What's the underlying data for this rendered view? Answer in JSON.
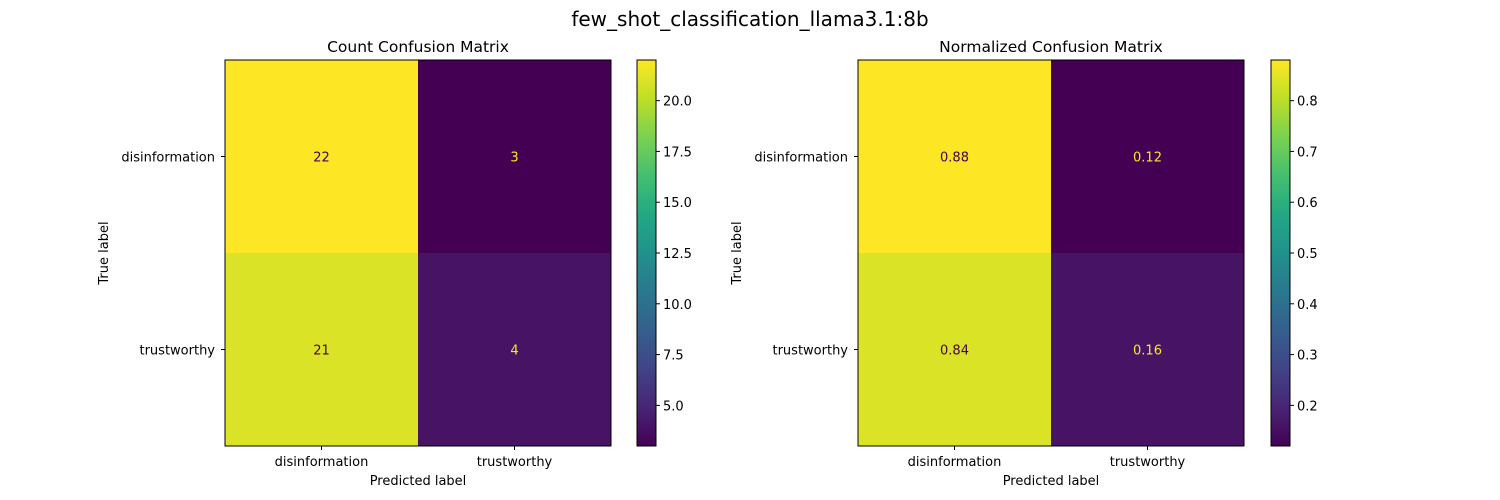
{
  "figure_title": "few_shot_classification_llama3.1:8b",
  "chart_data": [
    {
      "type": "heatmap",
      "title": "Count Confusion Matrix",
      "xlabel": "Predicted label",
      "ylabel": "True label",
      "x_categories": [
        "disinformation",
        "trustworthy"
      ],
      "y_categories": [
        "disinformation",
        "trustworthy"
      ],
      "values": [
        [
          22,
          3
        ],
        [
          21,
          4
        ]
      ],
      "value_labels": [
        [
          "22",
          "3"
        ],
        [
          "21",
          "4"
        ]
      ],
      "colormap": "viridis",
      "color_range": [
        3,
        22
      ],
      "colorbar_ticks": [
        5.0,
        7.5,
        10.0,
        12.5,
        15.0,
        17.5,
        20.0
      ],
      "colorbar_tick_labels": [
        "5.0",
        "7.5",
        "10.0",
        "12.5",
        "15.0",
        "17.5",
        "20.0"
      ]
    },
    {
      "type": "heatmap",
      "title": "Normalized Confusion Matrix",
      "xlabel": "Predicted label",
      "ylabel": "True label",
      "x_categories": [
        "disinformation",
        "trustworthy"
      ],
      "y_categories": [
        "disinformation",
        "trustworthy"
      ],
      "values": [
        [
          0.88,
          0.12
        ],
        [
          0.84,
          0.16
        ]
      ],
      "value_labels": [
        [
          "0.88",
          "0.12"
        ],
        [
          "0.84",
          "0.16"
        ]
      ],
      "colormap": "viridis",
      "color_range": [
        0.12,
        0.88
      ],
      "colorbar_ticks": [
        0.2,
        0.3,
        0.4,
        0.5,
        0.6,
        0.7,
        0.8
      ],
      "colorbar_tick_labels": [
        "0.2",
        "0.3",
        "0.4",
        "0.5",
        "0.6",
        "0.7",
        "0.8"
      ]
    }
  ]
}
